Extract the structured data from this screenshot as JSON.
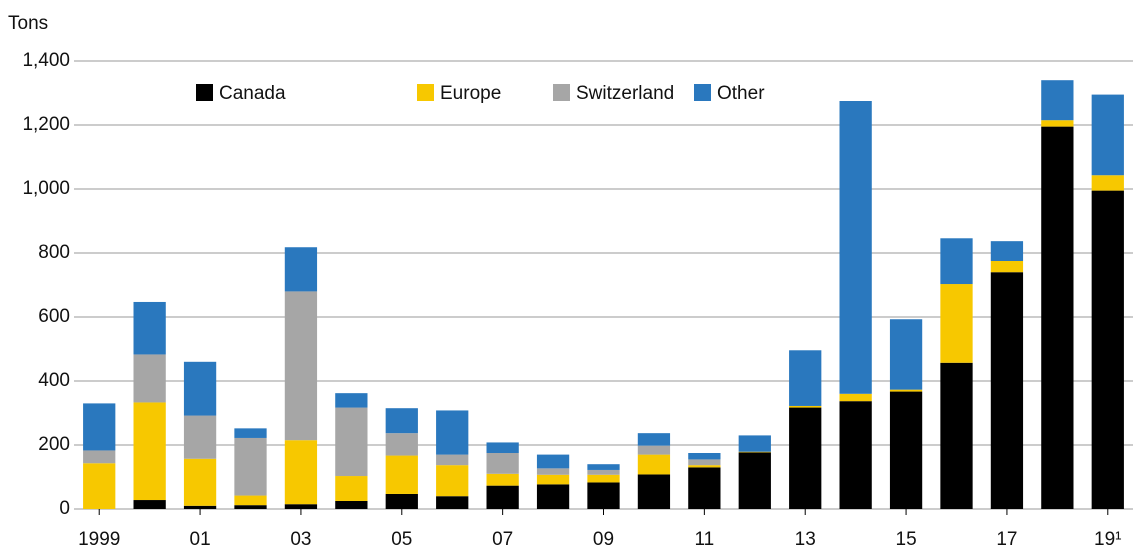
{
  "chart_data": {
    "type": "stacked_bar",
    "y_label": "Tons",
    "categories": [
      "1999",
      null,
      "01",
      null,
      "03",
      null,
      "05",
      null,
      "07",
      null,
      "09",
      null,
      "11",
      null,
      "13",
      null,
      "15",
      null,
      "17",
      null,
      "19¹"
    ],
    "series": [
      {
        "name": "Canada",
        "color": "#000000",
        "values": [
          0,
          28,
          10,
          12,
          15,
          25,
          47,
          40,
          73,
          77,
          83,
          108,
          130,
          177,
          317,
          337,
          367,
          457,
          740,
          1195,
          995
        ]
      },
      {
        "name": "Europe",
        "color": "#f7c800",
        "values": [
          143,
          305,
          147,
          30,
          200,
          78,
          120,
          97,
          37,
          30,
          24,
          62,
          7,
          2,
          5,
          23,
          6,
          246,
          35,
          20,
          48
        ]
      },
      {
        "name": "Switzerland",
        "color": "#a6a6a6",
        "values": [
          40,
          150,
          135,
          180,
          465,
          214,
          70,
          33,
          65,
          20,
          15,
          28,
          18,
          0,
          0,
          0,
          0,
          0,
          0,
          0,
          0
        ]
      },
      {
        "name": "Other",
        "color": "#2a78be",
        "values": [
          147,
          164,
          168,
          30,
          138,
          45,
          78,
          138,
          33,
          43,
          18,
          39,
          20,
          51,
          174,
          915,
          220,
          143,
          62,
          125,
          252
        ]
      }
    ],
    "ylim": [
      0,
      1400
    ],
    "yticks": [
      0,
      200,
      400,
      600,
      800,
      {
        "value": 1000,
        "label": "1,000"
      },
      {
        "value": 1200,
        "label": "1,200"
      },
      {
        "value": 1400,
        "label": "1,400"
      }
    ],
    "grid": true
  }
}
